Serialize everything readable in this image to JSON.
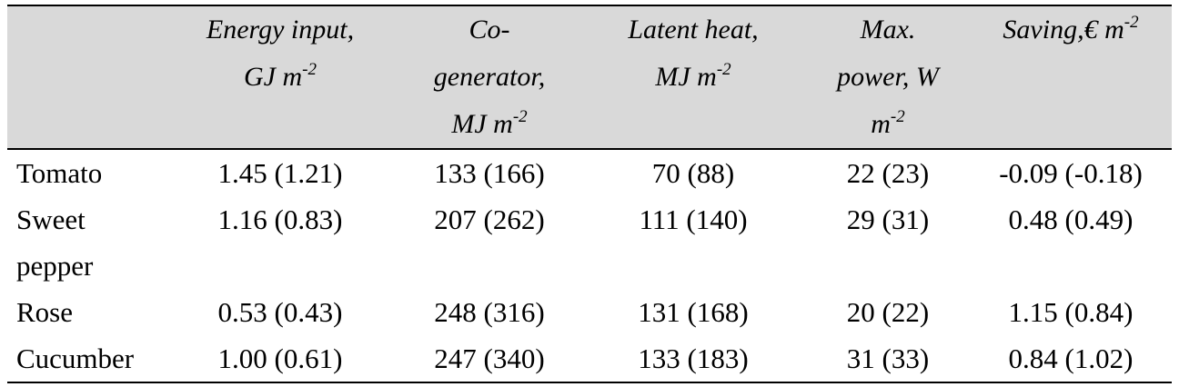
{
  "table": {
    "headers": [
      {
        "lines": [],
        "sup": ""
      },
      {
        "lines": [
          "Energy input,",
          "GJ m"
        ],
        "sup": "-2"
      },
      {
        "lines": [
          "Co-",
          "generator,",
          "MJ m"
        ],
        "sup": "-2"
      },
      {
        "lines": [
          "Latent heat,",
          "MJ m"
        ],
        "sup": "-2"
      },
      {
        "lines": [
          "Max.",
          "power, W",
          "m"
        ],
        "sup": "-2"
      },
      {
        "lines": [
          "Saving,€ m"
        ],
        "sup": "-2"
      }
    ],
    "rows": [
      {
        "crop": [
          "Tomato"
        ],
        "energy_input": "1.45 (1.21)",
        "cogenerator": "133 (166)",
        "latent_heat": "70 (88)",
        "max_power": "22 (23)",
        "saving": "-0.09 (-0.18)"
      },
      {
        "crop": [
          "Sweet",
          "pepper"
        ],
        "energy_input": "1.16 (0.83)",
        "cogenerator": "207 (262)",
        "latent_heat": "111 (140)",
        "max_power": "29 (31)",
        "saving": "0.48 (0.49)"
      },
      {
        "crop": [
          "Rose"
        ],
        "energy_input": "0.53 (0.43)",
        "cogenerator": "248 (316)",
        "latent_heat": "131 (168)",
        "max_power": "20 (22)",
        "saving": "1.15 (0.84)"
      },
      {
        "crop": [
          "Cucumber"
        ],
        "energy_input": "1.00 (0.61)",
        "cogenerator": "247 (340)",
        "latent_heat": "133 (183)",
        "max_power": "31 (33)",
        "saving": "0.84 (1.02)"
      }
    ]
  }
}
